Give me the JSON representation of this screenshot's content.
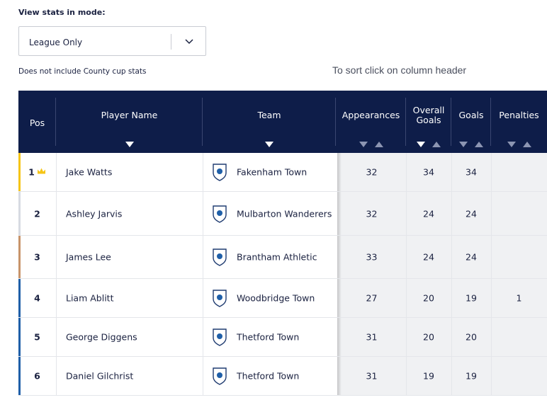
{
  "controls": {
    "mode_label": "View stats in mode:",
    "mode_value": "League Only",
    "note": "Does not include County cup stats",
    "sort_hint": "To sort click on column header"
  },
  "table": {
    "headers": {
      "pos": "Pos",
      "player": "Player Name",
      "team": "Team",
      "appearances": "Appearances",
      "overall_goals_l1": "Overall",
      "overall_goals_l2": "Goals",
      "goals": "Goals",
      "penalties": "Penalties"
    },
    "active_sort": "overall_goals_desc",
    "rows": [
      {
        "pos": "1",
        "player": "Jake Watts",
        "team": "Fakenham Town",
        "appearances": "32",
        "overall_goals": "34",
        "goals": "34",
        "penalties": "",
        "marker": "#f5c518",
        "crown": true
      },
      {
        "pos": "2",
        "player": "Ashley Jarvis",
        "team": "Mulbarton Wanderers",
        "appearances": "32",
        "overall_goals": "24",
        "goals": "24",
        "penalties": "",
        "marker": "#d7dbe2",
        "crown": false
      },
      {
        "pos": "3",
        "player": "James Lee",
        "team": "Brantham Athletic",
        "appearances": "33",
        "overall_goals": "24",
        "goals": "24",
        "penalties": "",
        "marker": "#c8946a",
        "crown": false
      },
      {
        "pos": "4",
        "player": "Liam Ablitt",
        "team": "Woodbridge Town",
        "appearances": "27",
        "overall_goals": "20",
        "goals": "19",
        "penalties": "1",
        "marker": "#1f5fa8",
        "crown": false
      },
      {
        "pos": "5",
        "player": "George Diggens",
        "team": "Thetford Town",
        "appearances": "31",
        "overall_goals": "20",
        "goals": "20",
        "penalties": "",
        "marker": "#1f5fa8",
        "crown": false
      },
      {
        "pos": "6",
        "player": "Daniel Gilchrist",
        "team": "Thetford Town",
        "appearances": "31",
        "overall_goals": "19",
        "goals": "19",
        "penalties": "",
        "marker": "#1f5fa8",
        "crown": false
      }
    ]
  },
  "colors": {
    "header_bg": "#0e1d49",
    "gold": "#f5c518",
    "silver": "#d7dbe2",
    "bronze": "#c8946a",
    "blue": "#1f5fa8"
  }
}
